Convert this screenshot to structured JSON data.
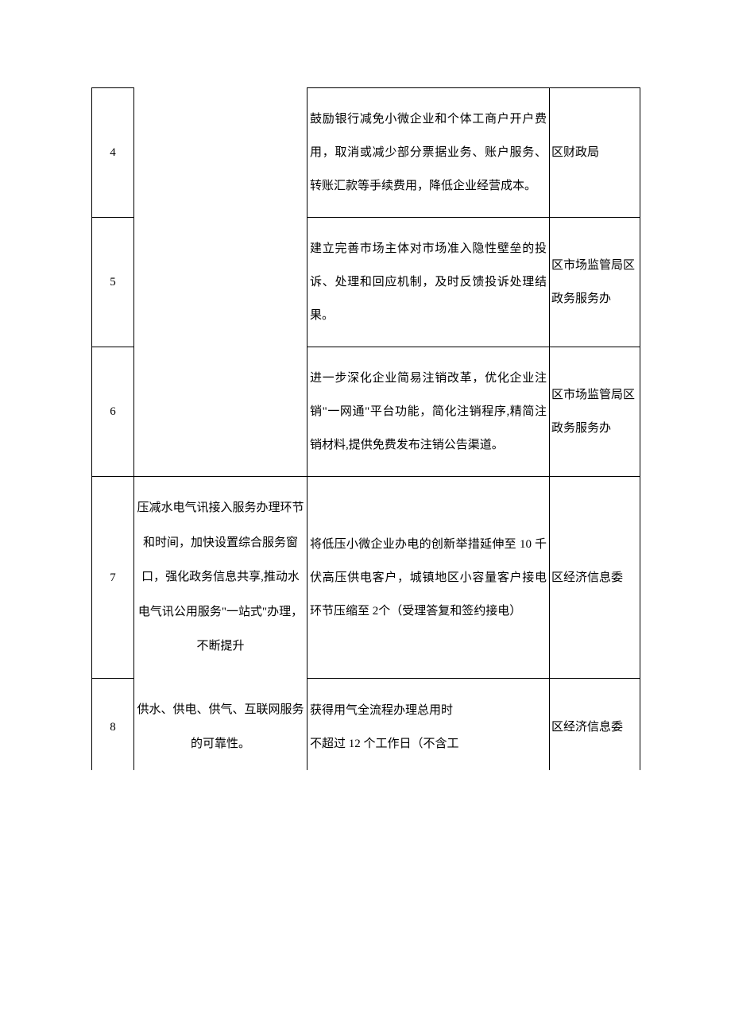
{
  "table": {
    "columns": {
      "num_width": 53,
      "topic_width": 218,
      "desc_width": 305,
      "dept_width": 114
    },
    "styling": {
      "border_color": "#000000",
      "text_color": "#000000",
      "background_color": "#ffffff",
      "font_size": 15,
      "line_height": 2.8,
      "font_family": "SimSun"
    },
    "rows": [
      {
        "num": "4",
        "topic": "",
        "desc": "鼓励银行减免小微企业和个体工商户开户费用，取消或减少部分票据业务、账户服务、转账汇款等手续费用，降低企业经营成本。",
        "dept": "区财政局"
      },
      {
        "num": "5",
        "topic": "",
        "desc": "建立完善市场主体对市场准入隐性壁垒的投诉、处理和回应机制，及时反馈投诉处理结果。",
        "dept": "区市场监管局区政务服务办"
      },
      {
        "num": "6",
        "topic": "",
        "desc": "进一步深化企业简易注销改革，优化企业注销\"一网通\"平台功能，简化注销程序,精简注销材料,提供免费发布注销公告渠道。",
        "dept": "区市场监管局区政务服务办"
      },
      {
        "num": "7",
        "topic_part1": "压减水电气讯接入服务办理环节和时间，加快设置综合服务窗口，强化政务信息共享,推动水电气讯公用服务\"一站式\"办理，不断提升",
        "desc": "将低压小微企业办电的创新举措延伸至 10 千伏高压供电客户，城镇地区小容量客户接电环节压缩至 2个（受理答复和签约接电）",
        "dept": "区经济信息委"
      },
      {
        "num": "8",
        "topic_part2": "供水、供电、供气、互联网服务的可靠性。",
        "desc": "获得用气全流程办理总用时\n不超过 12 个工作日（不含工",
        "dept": "区经济信息委"
      }
    ]
  }
}
